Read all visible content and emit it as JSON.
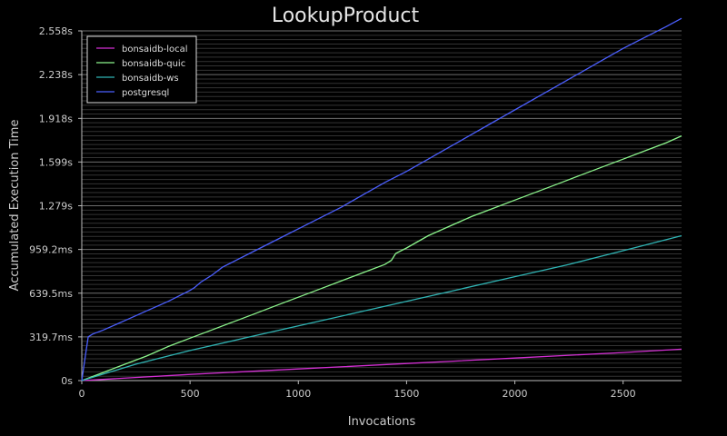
{
  "chart_data": {
    "type": "line",
    "title": "LookupProduct",
    "xlabel": "Invocations",
    "ylabel": "Accumulated Execution Time",
    "xlim": [
      0,
      2770
    ],
    "ylim": [
      0,
      2.558
    ],
    "x_ticks": [
      0,
      500,
      1000,
      1500,
      2000,
      2500
    ],
    "y_ticks": [
      {
        "value": 0,
        "label": "0s"
      },
      {
        "value": 0.3197,
        "label": "319.7ms"
      },
      {
        "value": 0.6395,
        "label": "639.5ms"
      },
      {
        "value": 0.9592,
        "label": "959.2ms"
      },
      {
        "value": 1.279,
        "label": "1.279s"
      },
      {
        "value": 1.599,
        "label": "1.599s"
      },
      {
        "value": 1.918,
        "label": "1.918s"
      },
      {
        "value": 2.238,
        "label": "2.238s"
      },
      {
        "value": 2.558,
        "label": "2.558s"
      }
    ],
    "grid": true,
    "legend_position": "top-left",
    "series": [
      {
        "name": "bonsaidb-local",
        "color": "#d22fd2",
        "x": [
          0,
          500,
          1000,
          1500,
          2000,
          2500,
          2770
        ],
        "y": [
          0,
          0.045,
          0.085,
          0.125,
          0.165,
          0.205,
          0.23
        ]
      },
      {
        "name": "bonsaidb-quic",
        "color": "#8cf58c",
        "x": [
          0,
          100,
          200,
          300,
          400,
          500,
          600,
          700,
          800,
          900,
          1000,
          1100,
          1200,
          1300,
          1400,
          1430,
          1450,
          1500,
          1600,
          1700,
          1800,
          1900,
          2000,
          2100,
          2200,
          2300,
          2400,
          2500,
          2600,
          2700,
          2770
        ],
        "y": [
          0,
          0.06,
          0.12,
          0.18,
          0.25,
          0.31,
          0.37,
          0.43,
          0.49,
          0.55,
          0.61,
          0.67,
          0.73,
          0.79,
          0.85,
          0.88,
          0.93,
          0.97,
          1.06,
          1.13,
          1.2,
          1.26,
          1.32,
          1.38,
          1.44,
          1.5,
          1.56,
          1.62,
          1.68,
          1.74,
          1.79
        ]
      },
      {
        "name": "bonsaidb-ws",
        "color": "#2fb4b4",
        "x": [
          0,
          250,
          500,
          750,
          1000,
          1250,
          1500,
          1750,
          2000,
          2250,
          2500,
          2770
        ],
        "y": [
          0,
          0.12,
          0.22,
          0.31,
          0.4,
          0.49,
          0.58,
          0.67,
          0.76,
          0.85,
          0.95,
          1.06
        ]
      },
      {
        "name": "postgresql",
        "color": "#4b5fff",
        "x": [
          0,
          20,
          30,
          50,
          100,
          200,
          300,
          400,
          500,
          520,
          550,
          600,
          650,
          700,
          800,
          900,
          1000,
          1100,
          1200,
          1300,
          1400,
          1500,
          1600,
          1700,
          1800,
          1900,
          2000,
          2100,
          2200,
          2300,
          2400,
          2500,
          2600,
          2700,
          2770
        ],
        "y": [
          0,
          0.22,
          0.32,
          0.34,
          0.37,
          0.44,
          0.51,
          0.58,
          0.66,
          0.68,
          0.72,
          0.77,
          0.83,
          0.87,
          0.95,
          1.03,
          1.11,
          1.19,
          1.27,
          1.36,
          1.45,
          1.53,
          1.62,
          1.71,
          1.8,
          1.89,
          1.98,
          2.07,
          2.16,
          2.25,
          2.34,
          2.43,
          2.51,
          2.59,
          2.65
        ]
      }
    ]
  }
}
